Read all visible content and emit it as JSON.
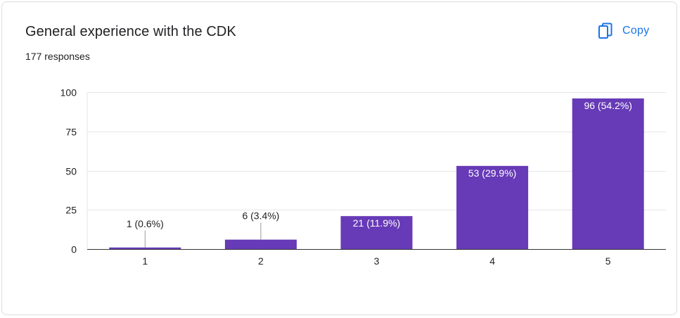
{
  "header": {
    "title": "General experience with the CDK",
    "responses": "177 responses",
    "copy_label": "Copy"
  },
  "colors": {
    "bar": "#673ab7",
    "accent": "#1a73e8",
    "grid": "#e6e6e6",
    "axis": "#333333"
  },
  "chart_data": {
    "type": "bar",
    "categories": [
      "1",
      "2",
      "3",
      "4",
      "5"
    ],
    "values": [
      1,
      6,
      21,
      53,
      96
    ],
    "data_labels": [
      "1 (0.6%)",
      "6 (3.4%)",
      "21 (11.9%)",
      "53 (29.9%)",
      "96 (54.2%)"
    ],
    "title": "General experience with the CDK",
    "xlabel": "",
    "ylabel": "",
    "ylim": [
      0,
      100
    ],
    "yticks": [
      "0",
      "25",
      "50",
      "75",
      "100"
    ],
    "grid": true,
    "legend": "none"
  }
}
